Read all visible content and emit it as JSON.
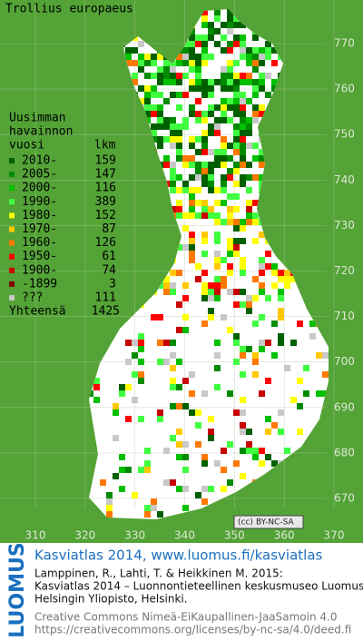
{
  "map": {
    "title": "Trollius europaeus",
    "legend": {
      "heading": [
        "Uusimman",
        "havainnon",
        "vuosi"
      ],
      "count_heading": "lkm",
      "rows": [
        {
          "label": "2010-",
          "count": 159,
          "color": "#006000"
        },
        {
          "label": "2005-",
          "count": 147,
          "color": "#008a00"
        },
        {
          "label": "2000-",
          "count": 116,
          "color": "#00c000"
        },
        {
          "label": "1990-",
          "count": 389,
          "color": "#40ff40"
        },
        {
          "label": "1980-",
          "count": 152,
          "color": "#ffff00"
        },
        {
          "label": "1970-",
          "count": 87,
          "color": "#ffc800"
        },
        {
          "label": "1960-",
          "count": 126,
          "color": "#ff7800"
        },
        {
          "label": "1950-",
          "count": 61,
          "color": "#ff0000"
        },
        {
          "label": "1900-",
          "count": 74,
          "color": "#c80000"
        },
        {
          "label": "-1899",
          "count": 3,
          "color": "#800000"
        },
        {
          "label": "???",
          "count": 111,
          "color": "#c8c8c8"
        }
      ],
      "total_label": "Yhteensä",
      "total": 1425
    },
    "xticks": [
      310,
      320,
      330,
      340,
      350,
      360,
      370
    ],
    "yticks": [
      670,
      680,
      690,
      700,
      710,
      720,
      730,
      740,
      750,
      760,
      770
    ],
    "badge": "BY-NC-SA"
  },
  "footer": {
    "logo": "LUOMUS",
    "heading": "Kasviatlas 2014, www.luomus.fi/kasviatlas",
    "citation": [
      "Lamppinen, R., Lahti, T. & Heikkinen M. 2015:",
      "Kasviatlas 2014 – Luonnontieteellinen keskusmuseo Luomus,",
      "Helsingin Yliopisto, Helsinki."
    ],
    "license": [
      "Creative Commons Nimeä-EiKaupallinen-JaaSamoin 4.0",
      "https://creativecommons.org/licenses/by-nc-sa/4.0/deed.fi"
    ]
  }
}
